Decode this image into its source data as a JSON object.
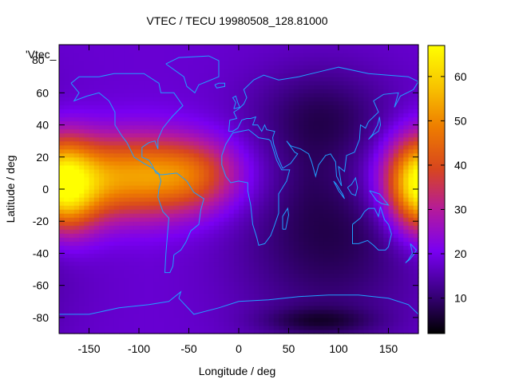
{
  "chart_data": {
    "type": "heatmap",
    "title": "VTEC / TECU 19980508_128.81000",
    "xlabel": "Longitude / deg",
    "ylabel": "Latitude / deg",
    "xlim": [
      -180,
      180
    ],
    "ylim": [
      -90,
      90
    ],
    "xticks": [
      "-150",
      "-100",
      "-50",
      "0",
      "50",
      "100",
      "150"
    ],
    "yticks": [
      "60",
      "40",
      "20",
      "0",
      "-20",
      "-40",
      "-60",
      "-80"
    ],
    "overlay_label": "'Vtec_",
    "overlay_tick": "80",
    "colorbar": {
      "range": [
        2,
        67
      ],
      "ticks": [
        "60",
        "50",
        "40",
        "30",
        "20",
        "10"
      ],
      "palette": [
        "#000000",
        "#3b0081",
        "#7900f2",
        "#b41a9c",
        "#d8461e",
        "#ee7c00",
        "#f8c400",
        "#ffff00"
      ]
    },
    "background_value": 18,
    "features": [
      {
        "lon": -110,
        "lat": 8,
        "sigma_lon": 65,
        "sigma_lat": 18,
        "amplitude": 34
      },
      {
        "lon": -168,
        "lat": -5,
        "sigma_lon": 25,
        "sigma_lat": 18,
        "amplitude": 14
      },
      {
        "lon": -45,
        "lat": 10,
        "sigma_lon": 30,
        "sigma_lat": 14,
        "amplitude": 10
      },
      {
        "lon": 180,
        "lat": 5,
        "sigma_lon": 22,
        "sigma_lat": 20,
        "amplitude": 28
      },
      {
        "lon": 90,
        "lat": -20,
        "sigma_lon": 65,
        "sigma_lat": 50,
        "amplitude": -11
      },
      {
        "lon": 80,
        "lat": -82,
        "sigma_lon": 40,
        "sigma_lat": 6,
        "amplitude": -8
      },
      {
        "lon": 80,
        "lat": 48,
        "sigma_lon": 45,
        "sigma_lat": 20,
        "amplitude": -6
      }
    ]
  }
}
